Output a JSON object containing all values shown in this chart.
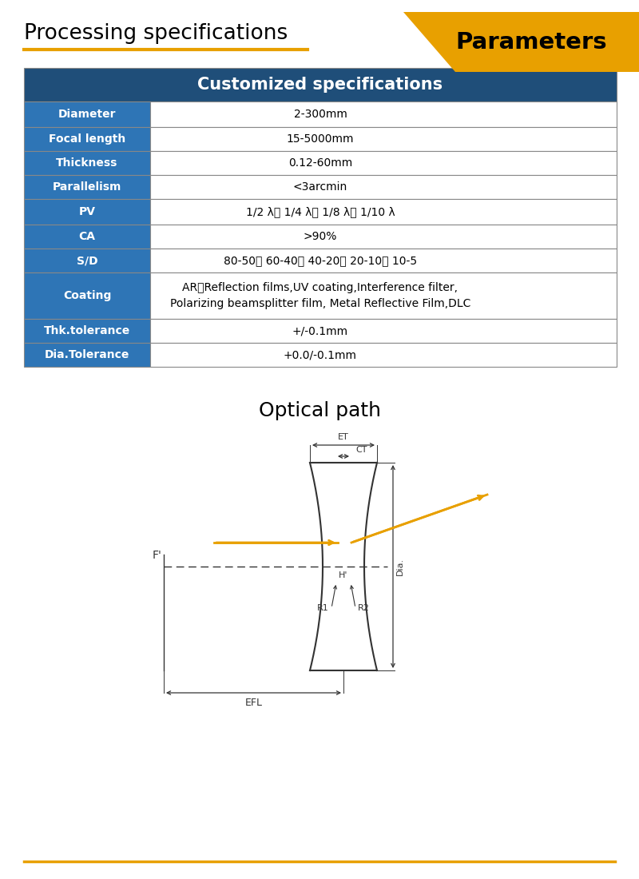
{
  "title_left": "Processing specifications",
  "title_right": "Parameters",
  "header": "Customized specifications",
  "table_rows": [
    [
      "Diameter",
      "2-300mm"
    ],
    [
      "Focal length",
      "15-5000mm"
    ],
    [
      "Thickness",
      "0.12-60mm"
    ],
    [
      "Parallelism",
      "<3arcmin"
    ],
    [
      "PV",
      "1/2 λ、 1/4 λ、 1/8 λ、 1/10 λ"
    ],
    [
      "CA",
      ">90%"
    ],
    [
      "S/D",
      "80-50、 60-40、 40-20、 20-10、 10-5"
    ],
    [
      "Coating",
      "AR、Reflection films,UV coating,Interference filter,\nPolarizing beamsplitter film, Metal Reflective Film,DLC"
    ],
    [
      "Thk.tolerance",
      "+/-0.1mm"
    ],
    [
      "Dia.Tolerance",
      "+0.0/-0.1mm"
    ]
  ],
  "optical_path_title": "Optical path",
  "orange": "#E8A000",
  "white": "#FFFFFF",
  "black": "#000000",
  "bg_color": "#FFFFFF",
  "header_bg": "#1F4E79",
  "row_label_bg": "#2E75B6",
  "table_border": "#888888",
  "line_color": "#333333"
}
